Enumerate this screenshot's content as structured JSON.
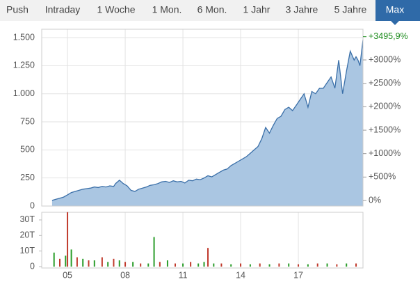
{
  "tabs": [
    "Push",
    "Intraday",
    "1 Woche",
    "1 Mon.",
    "6 Mon.",
    "1 Jahr",
    "3 Jahre",
    "5 Jahre",
    "Max"
  ],
  "active_tab": 8,
  "chart_data": {
    "type": "area",
    "color": "#3a6fa8",
    "fill": "#aac6e2",
    "grid": true,
    "x": [
      4.2,
      4.4,
      4.6,
      4.8,
      5.0,
      5.2,
      5.4,
      5.6,
      5.8,
      6.0,
      6.2,
      6.4,
      6.6,
      6.8,
      7.0,
      7.2,
      7.4,
      7.5,
      7.7,
      7.9,
      8.1,
      8.3,
      8.5,
      8.7,
      8.9,
      9.1,
      9.3,
      9.5,
      9.7,
      9.9,
      10.1,
      10.3,
      10.5,
      10.7,
      10.9,
      11.1,
      11.3,
      11.5,
      11.7,
      11.9,
      12.1,
      12.3,
      12.5,
      12.7,
      12.9,
      13.1,
      13.3,
      13.5,
      13.7,
      13.9,
      14.1,
      14.3,
      14.5,
      14.7,
      14.9,
      15.1,
      15.3,
      15.5,
      15.7,
      15.9,
      16.1,
      16.3,
      16.5,
      16.7,
      16.9,
      17.1,
      17.3,
      17.5,
      17.7,
      17.9,
      18.1,
      18.3,
      18.5,
      18.7,
      18.9,
      19.1,
      19.3,
      19.5,
      19.7,
      19.9,
      20.0,
      20.1,
      20.2,
      20.36
    ],
    "values": [
      50,
      60,
      70,
      80,
      100,
      120,
      130,
      140,
      150,
      155,
      160,
      170,
      165,
      175,
      170,
      180,
      175,
      200,
      230,
      200,
      180,
      140,
      130,
      150,
      160,
      170,
      185,
      190,
      200,
      215,
      220,
      210,
      225,
      215,
      220,
      205,
      230,
      225,
      240,
      235,
      250,
      270,
      260,
      280,
      300,
      320,
      330,
      360,
      380,
      400,
      420,
      440,
      470,
      500,
      530,
      600,
      700,
      650,
      720,
      780,
      800,
      860,
      880,
      850,
      900,
      950,
      1000,
      880,
      1020,
      1000,
      1050,
      1050,
      1100,
      1150,
      1050,
      1300,
      1000,
      1200,
      1380,
      1300,
      1330,
      1300,
      1250,
      1480
    ],
    "xlim": [
      3.66,
      20.36
    ],
    "xticks": [
      {
        "value": 5,
        "label": "05"
      },
      {
        "value": 8,
        "label": "08"
      },
      {
        "value": 11,
        "label": "11"
      },
      {
        "value": 14,
        "label": "14"
      },
      {
        "value": 17,
        "label": "17"
      }
    ],
    "ylim": [
      0,
      1575
    ],
    "yticks": [
      0,
      250,
      500,
      750,
      {
        "value": 1000,
        "label": "1.000"
      },
      {
        "value": 1250,
        "label": "1.250"
      },
      {
        "value": 1500,
        "label": "1.500"
      }
    ],
    "y2lim": [
      -119,
      3655
    ],
    "y2ticks": [
      {
        "value": 0,
        "label": "0%"
      },
      {
        "value": 500,
        "label": "+500%"
      },
      {
        "value": 1000,
        "label": "+1000%"
      },
      {
        "value": 1500,
        "label": "+1500%"
      },
      {
        "value": 2000,
        "label": "+2000%"
      },
      {
        "value": 2500,
        "label": "+2500%"
      },
      {
        "value": 3000,
        "label": "+3000%"
      }
    ],
    "last_change": {
      "value": 3495.9,
      "label": "+3495,9%",
      "color": "#1a8a1a"
    },
    "volume": {
      "x": [
        4.3,
        4.6,
        4.9,
        5.0,
        5.2,
        5.5,
        5.8,
        6.1,
        6.4,
        6.8,
        7.1,
        7.4,
        7.7,
        8.0,
        8.4,
        8.8,
        9.2,
        9.5,
        9.8,
        10.2,
        10.6,
        11.0,
        11.4,
        11.8,
        12.1,
        12.3,
        12.6,
        13.0,
        13.5,
        14.0,
        14.5,
        15.0,
        15.5,
        16.0,
        16.5,
        17.0,
        17.5,
        18.0,
        18.5,
        19.0,
        19.5,
        20.0
      ],
      "values": [
        9,
        5,
        7,
        35,
        11,
        6,
        5,
        4,
        4,
        6,
        3,
        5,
        4,
        3,
        3,
        2,
        2,
        19,
        3,
        4,
        2,
        2,
        3,
        2,
        3,
        12,
        2,
        2,
        1.5,
        2,
        1.5,
        2,
        1.5,
        2,
        2,
        1.5,
        1.5,
        2,
        2,
        1.5,
        2,
        2
      ],
      "colors": [
        "#2a9d2a",
        "#c0392b",
        "#2a9d2a",
        "#c0392b",
        "#2a9d2a",
        "#c0392b",
        "#2a9d2a",
        "#c0392b",
        "#2a9d2a",
        "#c0392b",
        "#2a9d2a",
        "#c0392b",
        "#2a9d2a",
        "#c0392b",
        "#2a9d2a",
        "#c0392b",
        "#2a9d2a",
        "#2a9d2a",
        "#c0392b",
        "#2a9d2a",
        "#c0392b",
        "#2a9d2a",
        "#c0392b",
        "#2a9d2a",
        "#2a9d2a",
        "#c0392b",
        "#2a9d2a",
        "#c0392b",
        "#2a9d2a",
        "#c0392b",
        "#2a9d2a",
        "#c0392b",
        "#2a9d2a",
        "#c0392b",
        "#2a9d2a",
        "#c0392b",
        "#2a9d2a",
        "#c0392b",
        "#2a9d2a",
        "#c0392b",
        "#2a9d2a",
        "#c0392b"
      ],
      "ylim": [
        -0.9,
        34.9
      ],
      "yticks": [
        0,
        {
          "value": 10,
          "label": "10T"
        },
        {
          "value": 20,
          "label": "20T"
        },
        {
          "value": 30,
          "label": "30T"
        }
      ]
    }
  }
}
